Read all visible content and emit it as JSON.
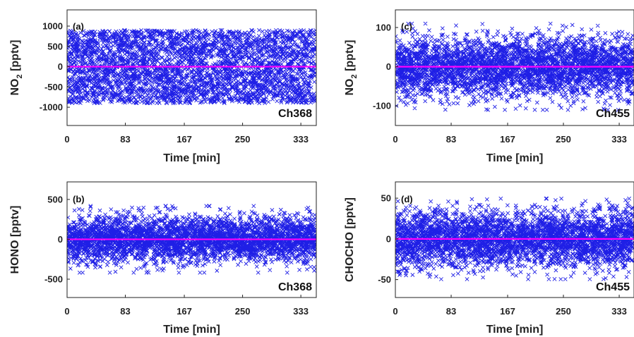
{
  "colors": {
    "scatter": "#1f1fe6",
    "zero_line": "#ff00ff",
    "axes": "#222222"
  },
  "chart_data": [
    {
      "id": "a",
      "type": "scatter",
      "panel_label": "(a)",
      "channel_label": "Ch368",
      "ylabel_main": "NO",
      "ylabel_sub": "2",
      "ylabel_unit": " [pptv]",
      "xlabel": "Time [min]",
      "xlim": [
        0,
        355
      ],
      "ylim": [
        -1450,
        1400
      ],
      "xticks": [
        0,
        83,
        167,
        250,
        333
      ],
      "yticks": [
        1000,
        500,
        0,
        -500,
        -1000
      ],
      "n_points": 3600,
      "noise_amplitude": 900,
      "noise_shape": "uniform",
      "zero_line": 0,
      "marker": "x"
    },
    {
      "id": "b",
      "type": "scatter",
      "panel_label": "(b)",
      "channel_label": "Ch368",
      "ylabel_main": "HONO [pptv]",
      "ylabel_sub": "",
      "ylabel_unit": "",
      "xlabel": "Time [min]",
      "xlim": [
        0,
        355
      ],
      "ylim": [
        -730,
        720
      ],
      "xticks": [
        0,
        83,
        167,
        250,
        333
      ],
      "yticks": [
        500,
        0,
        -500
      ],
      "n_points": 3600,
      "noise_amplitude": 380,
      "noise_shape": "gaussian",
      "zero_line": 0,
      "marker": "x"
    },
    {
      "id": "c",
      "type": "scatter",
      "panel_label": "(c)",
      "channel_label": "Ch455",
      "ylabel_main": "NO",
      "ylabel_sub": "2",
      "ylabel_unit": " [pptv]",
      "xlabel": "Time [min]",
      "xlim": [
        0,
        355
      ],
      "ylim": [
        -150,
        145
      ],
      "xticks": [
        0,
        83,
        167,
        250,
        333
      ],
      "yticks": [
        100,
        0,
        -100
      ],
      "n_points": 3600,
      "noise_amplitude": 100,
      "noise_shape": "gaussian",
      "zero_line": 0,
      "marker": "x"
    },
    {
      "id": "d",
      "type": "scatter",
      "panel_label": "(d)",
      "channel_label": "Ch455",
      "ylabel_main": "CHOCHO [pptv]",
      "ylabel_sub": "",
      "ylabel_unit": "",
      "xlabel": "Time [min]",
      "xlim": [
        0,
        355
      ],
      "ylim": [
        -72,
        70
      ],
      "xticks": [
        0,
        83,
        167,
        250,
        333
      ],
      "yticks": [
        50,
        0,
        -50
      ],
      "n_points": 3600,
      "noise_amplitude": 45,
      "noise_shape": "gaussian",
      "zero_line": 0,
      "marker": "x"
    }
  ]
}
